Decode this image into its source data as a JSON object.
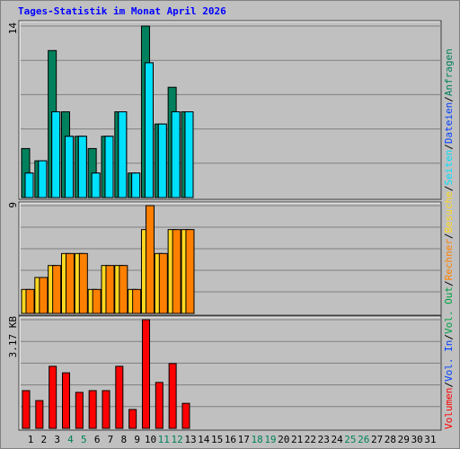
{
  "title": "Tages-Statistik im Monat April 2026",
  "legend_separator": "/",
  "chart_data": [
    {
      "type": "bar",
      "ylim": [
        0,
        14
      ],
      "yticks": [
        14
      ],
      "grid": true,
      "series": [
        {
          "name": "Anfragen",
          "color": "#00805c",
          "values": [
            4,
            3,
            12,
            7,
            5,
            4,
            5,
            7,
            2,
            14,
            6,
            9,
            7,
            0,
            0,
            0,
            0,
            0,
            0,
            0,
            0,
            0,
            0,
            0,
            0,
            0,
            0,
            0,
            0,
            0,
            0
          ]
        },
        {
          "name": "Dateien",
          "color": "#0040ff",
          "values": [
            2,
            3,
            7,
            5,
            5,
            2,
            5,
            7,
            2,
            11,
            6,
            7,
            7,
            0,
            0,
            0,
            0,
            0,
            0,
            0,
            0,
            0,
            0,
            0,
            0,
            0,
            0,
            0,
            0,
            0,
            0
          ]
        },
        {
          "name": "Seiten",
          "color": "#00e0ff",
          "values": [
            2,
            3,
            7,
            5,
            5,
            2,
            5,
            7,
            2,
            11,
            6,
            7,
            7,
            0,
            0,
            0,
            0,
            0,
            0,
            0,
            0,
            0,
            0,
            0,
            0,
            0,
            0,
            0,
            0,
            0,
            0
          ]
        }
      ]
    },
    {
      "type": "bar",
      "ylim": [
        0,
        9
      ],
      "yticks": [
        9
      ],
      "grid": true,
      "series": [
        {
          "name": "Besuche",
          "color": "#ffd820",
          "values": [
            2,
            3,
            4,
            5,
            5,
            2,
            4,
            4,
            2,
            7,
            5,
            7,
            7,
            0,
            0,
            0,
            0,
            0,
            0,
            0,
            0,
            0,
            0,
            0,
            0,
            0,
            0,
            0,
            0,
            0,
            0
          ]
        },
        {
          "name": "Rechner",
          "color": "#ff8000",
          "values": [
            2,
            3,
            4,
            5,
            5,
            2,
            4,
            4,
            2,
            9,
            5,
            7,
            7,
            0,
            0,
            0,
            0,
            0,
            0,
            0,
            0,
            0,
            0,
            0,
            0,
            0,
            0,
            0,
            0,
            0,
            0
          ]
        }
      ]
    },
    {
      "type": "bar",
      "ylim": [
        0,
        3.17
      ],
      "yticks": [
        {
          "value": 3.17,
          "label": "3.17 KB"
        }
      ],
      "grid": true,
      "categories": [
        "1",
        "2",
        "3",
        "4",
        "5",
        "6",
        "7",
        "8",
        "9",
        "10",
        "11",
        "12",
        "13",
        "14",
        "15",
        "16",
        "17",
        "18",
        "19",
        "20",
        "21",
        "22",
        "23",
        "24",
        "25",
        "26",
        "27",
        "28",
        "29",
        "30",
        "31"
      ],
      "category_colors": [
        "#000000",
        "#000000",
        "#000000",
        "#00805c",
        "#00805c",
        "#000000",
        "#000000",
        "#000000",
        "#000000",
        "#000000",
        "#00805c",
        "#00805c",
        "#000000",
        "#000000",
        "#000000",
        "#000000",
        "#000000",
        "#00805c",
        "#00805c",
        "#000000",
        "#000000",
        "#000000",
        "#000000",
        "#000000",
        "#00805c",
        "#00805c",
        "#000000",
        "#000000",
        "#000000",
        "#000000",
        "#000000"
      ],
      "series": [
        {
          "name": "Vol. Out",
          "color": "#00a040",
          "values": [
            0,
            0,
            0,
            0,
            0,
            0,
            0,
            0,
            0,
            0,
            0,
            0,
            0,
            0,
            0,
            0,
            0,
            0,
            0,
            0,
            0,
            0,
            0,
            0,
            0,
            0,
            0,
            0,
            0,
            0,
            0
          ]
        },
        {
          "name": "Vol. In",
          "color": "#0040ff",
          "values": [
            0,
            0,
            0,
            0,
            0,
            0,
            0,
            0,
            0,
            0,
            0,
            0,
            0,
            0,
            0,
            0,
            0,
            0,
            0,
            0,
            0,
            0,
            0,
            0,
            0,
            0,
            0,
            0,
            0,
            0,
            0
          ]
        },
        {
          "name": "Volumen",
          "color": "#ff0000",
          "values": [
            1.1,
            0.81,
            1.81,
            1.62,
            1.05,
            1.1,
            1.1,
            1.81,
            0.55,
            3.17,
            1.34,
            1.89,
            0.73,
            0,
            0,
            0,
            0,
            0,
            0,
            0,
            0,
            0,
            0,
            0,
            0,
            0,
            0,
            0,
            0,
            0,
            0
          ]
        }
      ]
    }
  ]
}
